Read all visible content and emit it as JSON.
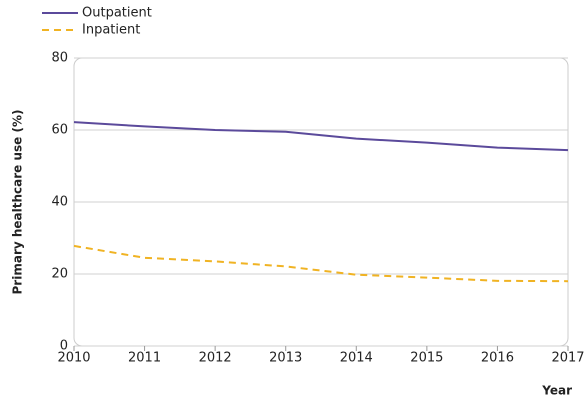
{
  "chart_data": {
    "type": "line",
    "x_label": "Year",
    "y_label": "Primary healthcare use (%)",
    "x": [
      2010,
      2011,
      2012,
      2013,
      2014,
      2015,
      2016,
      2017
    ],
    "series": [
      {
        "name": "Outpatient",
        "color": "#5b4a9b",
        "dashed": false,
        "values": [
          62.2,
          61,
          60,
          59.5,
          57.6,
          56.5,
          55.1,
          54.4
        ]
      },
      {
        "name": "Inpatient",
        "color": "#f0b323",
        "dashed": true,
        "values": [
          27.8,
          24.5,
          23.5,
          22.1,
          19.8,
          19,
          18.1,
          18
        ]
      }
    ],
    "xlim": [
      2010,
      2017
    ],
    "xticks": [
      2010,
      2011,
      2012,
      2013,
      2014,
      2015,
      2016,
      2017
    ],
    "ylim": [
      0,
      80
    ],
    "yticks": [
      0,
      20,
      40,
      60,
      80
    ],
    "grid": true,
    "legend": "top-left"
  }
}
